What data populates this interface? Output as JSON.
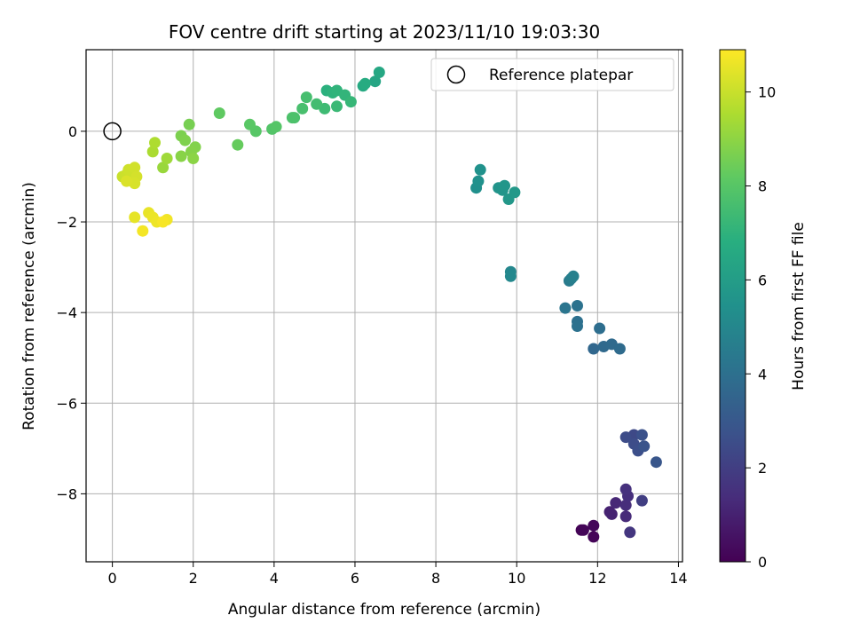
{
  "chart_data": {
    "type": "scatter",
    "title": "FOV centre drift starting at 2023/11/10 19:03:30",
    "xlabel": "Angular distance from reference (arcmin)",
    "ylabel": "Rotation from reference (arcmin)",
    "xlim": [
      -0.65,
      14.1
    ],
    "ylim": [
      -9.5,
      1.8
    ],
    "xticks": [
      0,
      2,
      4,
      6,
      8,
      10,
      12,
      14
    ],
    "yticks": [
      0,
      -2,
      -4,
      -6,
      -8
    ],
    "grid": true,
    "legend": {
      "placement": "top-right",
      "entries": [
        "Reference platepar"
      ]
    },
    "reference_point": {
      "x": 0,
      "y": 0
    },
    "colorbar": {
      "label": "Hours from first FF file",
      "range": [
        0,
        10.9
      ],
      "ticks": [
        0,
        2,
        4,
        6,
        8,
        10
      ],
      "colormap": "viridis"
    },
    "points": [
      {
        "x": 11.6,
        "y": -8.8,
        "h": 0.05
      },
      {
        "x": 11.9,
        "y": -8.95,
        "h": 0.1
      },
      {
        "x": 11.9,
        "y": -8.7,
        "h": 0.2
      },
      {
        "x": 11.65,
        "y": -8.8,
        "h": 0.15
      },
      {
        "x": 12.3,
        "y": -8.4,
        "h": 1.0
      },
      {
        "x": 12.35,
        "y": -8.45,
        "h": 1.05
      },
      {
        "x": 12.45,
        "y": -8.2,
        "h": 1.2
      },
      {
        "x": 12.7,
        "y": -8.5,
        "h": 1.3
      },
      {
        "x": 12.7,
        "y": -8.25,
        "h": 1.4
      },
      {
        "x": 12.75,
        "y": -8.05,
        "h": 1.45
      },
      {
        "x": 12.7,
        "y": -7.9,
        "h": 1.5
      },
      {
        "x": 12.8,
        "y": -8.85,
        "h": 1.7
      },
      {
        "x": 13.1,
        "y": -8.15,
        "h": 2.0
      },
      {
        "x": 12.9,
        "y": -6.7,
        "h": 2.4
      },
      {
        "x": 12.7,
        "y": -6.75,
        "h": 2.5
      },
      {
        "x": 12.9,
        "y": -6.9,
        "h": 2.55
      },
      {
        "x": 13.0,
        "y": -7.05,
        "h": 2.6
      },
      {
        "x": 13.1,
        "y": -6.7,
        "h": 2.7
      },
      {
        "x": 13.15,
        "y": -6.95,
        "h": 2.8
      },
      {
        "x": 13.45,
        "y": -7.3,
        "h": 2.9
      },
      {
        "x": 11.9,
        "y": -4.8,
        "h": 3.6
      },
      {
        "x": 12.15,
        "y": -4.75,
        "h": 3.7
      },
      {
        "x": 12.35,
        "y": -4.7,
        "h": 3.75
      },
      {
        "x": 12.55,
        "y": -4.8,
        "h": 3.8
      },
      {
        "x": 12.05,
        "y": -4.35,
        "h": 3.9
      },
      {
        "x": 11.5,
        "y": -4.2,
        "h": 4.0
      },
      {
        "x": 11.5,
        "y": -4.3,
        "h": 4.05
      },
      {
        "x": 11.5,
        "y": -3.85,
        "h": 4.1
      },
      {
        "x": 11.2,
        "y": -3.9,
        "h": 4.2
      },
      {
        "x": 11.3,
        "y": -3.3,
        "h": 4.5
      },
      {
        "x": 11.35,
        "y": -3.25,
        "h": 4.6
      },
      {
        "x": 11.4,
        "y": -3.2,
        "h": 4.7
      },
      {
        "x": 9.85,
        "y": -3.1,
        "h": 5.0
      },
      {
        "x": 9.85,
        "y": -3.2,
        "h": 5.05
      },
      {
        "x": 9.0,
        "y": -1.25,
        "h": 5.4
      },
      {
        "x": 9.05,
        "y": -1.1,
        "h": 5.45
      },
      {
        "x": 9.1,
        "y": -0.85,
        "h": 5.5
      },
      {
        "x": 9.55,
        "y": -1.25,
        "h": 5.6
      },
      {
        "x": 9.65,
        "y": -1.3,
        "h": 5.65
      },
      {
        "x": 9.7,
        "y": -1.2,
        "h": 5.7
      },
      {
        "x": 9.8,
        "y": -1.5,
        "h": 5.75
      },
      {
        "x": 9.95,
        "y": -1.35,
        "h": 5.8
      },
      {
        "x": 6.5,
        "y": 1.1,
        "h": 6.4
      },
      {
        "x": 6.6,
        "y": 1.3,
        "h": 6.5
      },
      {
        "x": 6.2,
        "y": 1.0,
        "h": 6.6
      },
      {
        "x": 6.25,
        "y": 1.05,
        "h": 6.65
      },
      {
        "x": 5.3,
        "y": 0.9,
        "h": 6.9
      },
      {
        "x": 5.45,
        "y": 0.85,
        "h": 7.0
      },
      {
        "x": 5.55,
        "y": 0.9,
        "h": 7.05
      },
      {
        "x": 5.75,
        "y": 0.8,
        "h": 7.1
      },
      {
        "x": 5.9,
        "y": 0.65,
        "h": 7.2
      },
      {
        "x": 5.55,
        "y": 0.55,
        "h": 7.3
      },
      {
        "x": 5.25,
        "y": 0.5,
        "h": 7.4
      },
      {
        "x": 5.05,
        "y": 0.6,
        "h": 7.5
      },
      {
        "x": 4.8,
        "y": 0.75,
        "h": 7.6
      },
      {
        "x": 4.7,
        "y": 0.5,
        "h": 7.65
      },
      {
        "x": 4.5,
        "y": 0.3,
        "h": 7.7
      },
      {
        "x": 4.45,
        "y": 0.3,
        "h": 7.75
      },
      {
        "x": 3.95,
        "y": 0.05,
        "h": 7.9
      },
      {
        "x": 4.05,
        "y": 0.1,
        "h": 7.95
      },
      {
        "x": 3.55,
        "y": 0.0,
        "h": 8.0
      },
      {
        "x": 3.4,
        "y": 0.15,
        "h": 8.05
      },
      {
        "x": 2.65,
        "y": 0.4,
        "h": 8.2
      },
      {
        "x": 3.1,
        "y": -0.3,
        "h": 8.3
      },
      {
        "x": 1.9,
        "y": 0.15,
        "h": 8.6
      },
      {
        "x": 1.7,
        "y": -0.1,
        "h": 8.7
      },
      {
        "x": 1.8,
        "y": -0.2,
        "h": 8.75
      },
      {
        "x": 2.05,
        "y": -0.35,
        "h": 8.8
      },
      {
        "x": 1.95,
        "y": -0.45,
        "h": 8.85
      },
      {
        "x": 1.7,
        "y": -0.55,
        "h": 8.9
      },
      {
        "x": 2.0,
        "y": -0.6,
        "h": 8.95
      },
      {
        "x": 1.25,
        "y": -0.8,
        "h": 9.2
      },
      {
        "x": 1.35,
        "y": -0.6,
        "h": 9.3
      },
      {
        "x": 1.0,
        "y": -0.45,
        "h": 9.5
      },
      {
        "x": 1.05,
        "y": -0.25,
        "h": 9.55
      },
      {
        "x": 0.25,
        "y": -1.0,
        "h": 10.0
      },
      {
        "x": 0.35,
        "y": -0.95,
        "h": 10.05
      },
      {
        "x": 0.4,
        "y": -0.85,
        "h": 10.1
      },
      {
        "x": 0.55,
        "y": -0.8,
        "h": 10.15
      },
      {
        "x": 0.6,
        "y": -1.0,
        "h": 10.2
      },
      {
        "x": 0.55,
        "y": -1.15,
        "h": 10.25
      },
      {
        "x": 0.35,
        "y": -1.1,
        "h": 10.3
      },
      {
        "x": 0.55,
        "y": -1.9,
        "h": 10.5
      },
      {
        "x": 0.9,
        "y": -1.8,
        "h": 10.55
      },
      {
        "x": 1.0,
        "y": -1.9,
        "h": 10.6
      },
      {
        "x": 1.1,
        "y": -2.0,
        "h": 10.65
      },
      {
        "x": 1.35,
        "y": -1.95,
        "h": 10.7
      },
      {
        "x": 0.75,
        "y": -2.2,
        "h": 10.75
      },
      {
        "x": 1.25,
        "y": -2.0,
        "h": 10.8
      }
    ]
  }
}
